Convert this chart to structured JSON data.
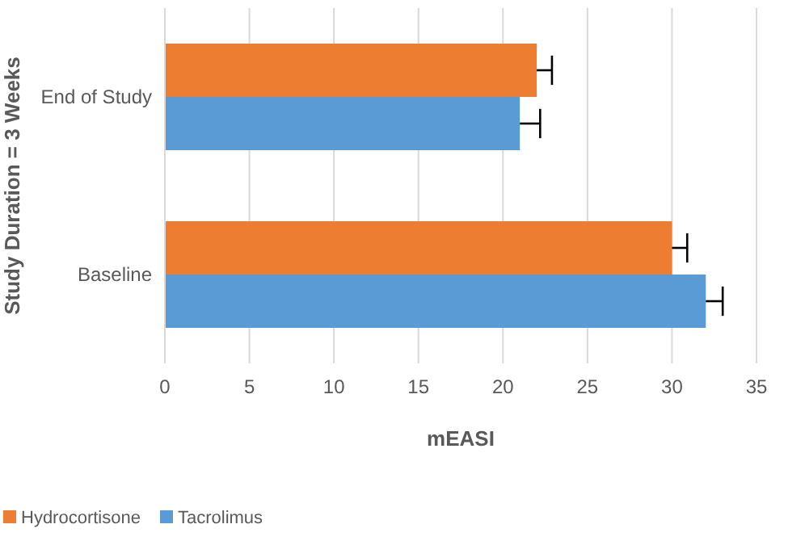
{
  "chart_data": {
    "type": "bar",
    "orientation": "horizontal",
    "xlabel": "mEASI",
    "ylabel": "Study Duration = 3 Weeks",
    "categories": [
      "End of Study",
      "Baseline"
    ],
    "series": [
      {
        "name": "Hydrocortisone",
        "color": "#ed7d31",
        "values": [
          22,
          30
        ],
        "errors": [
          [
            22,
            22.9
          ],
          [
            30,
            30.9
          ]
        ]
      },
      {
        "name": "Tacrolimus",
        "color": "#5b9bd5",
        "values": [
          21,
          32
        ],
        "errors": [
          [
            21,
            22.2
          ],
          [
            32,
            33
          ]
        ]
      }
    ],
    "xlim": [
      0,
      35
    ],
    "xticks": [
      0,
      5,
      10,
      15,
      20,
      25,
      30,
      35
    ],
    "grid": "x",
    "legend": "bottom"
  }
}
